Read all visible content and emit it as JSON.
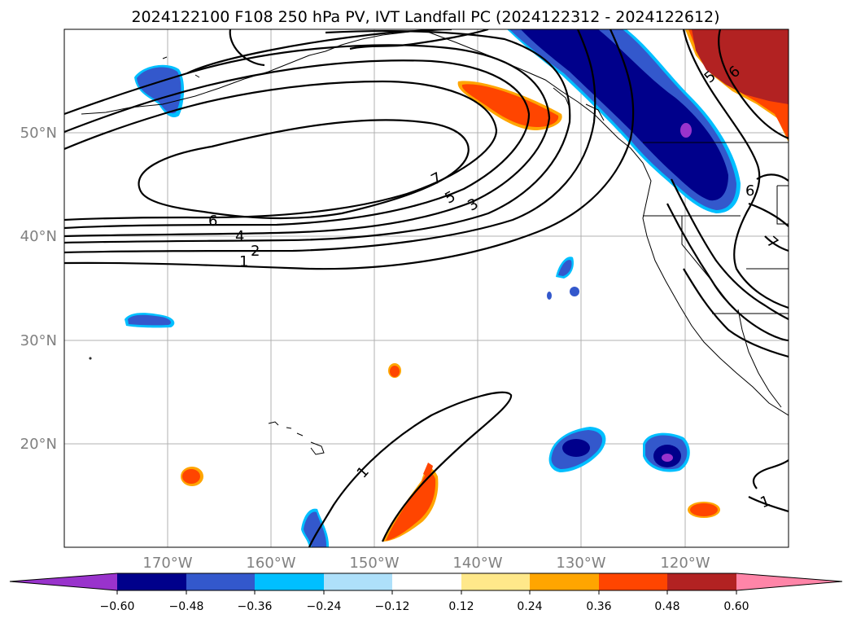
{
  "title": "2024122100 F108 250 hPa PV, IVT Landfall PC (2024122312 - 2024122612)",
  "map": {
    "lat_ticks": [
      "50°N",
      "40°N",
      "30°N",
      "20°N"
    ],
    "lon_ticks": [
      "170°W",
      "160°W",
      "150°W",
      "140°W",
      "130°W",
      "120°W"
    ],
    "extent_lon": [
      -180,
      -110
    ],
    "extent_lat": [
      10,
      60
    ],
    "grid": true
  },
  "colorbar": {
    "ticks": [
      "−0.60",
      "−0.48",
      "−0.36",
      "−0.24",
      "−0.12",
      "0.12",
      "0.24",
      "0.36",
      "0.48",
      "0.60"
    ],
    "colors": {
      "lt_neg060": "#9933cc",
      "neg060_neg048": "#00008b",
      "neg048_neg036": "#3358cc",
      "neg036_neg024": "#00bfff",
      "neg024_neg012": "#aee0fa",
      "neg012_012": "#ffffff",
      "p012_p024": "#ffe88a",
      "p024_p036": "#ffa500",
      "p036_p048": "#ff4500",
      "p048_p060": "#b22222",
      "gt_p060": "#ff85a8"
    }
  },
  "contour_labels": [
    "7",
    "6",
    "5",
    "4",
    "3",
    "2",
    "1",
    "1",
    "1",
    "5",
    "6",
    "6",
    "7"
  ]
}
